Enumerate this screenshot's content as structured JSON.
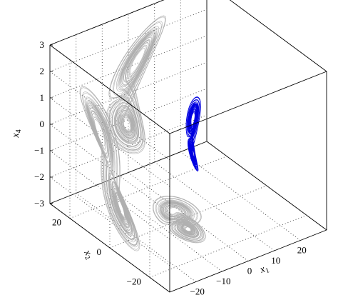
{
  "chart_data": {
    "type": "line3d",
    "title": "",
    "view": "3D phase portrait with projections on the walls",
    "axes": {
      "x1": {
        "label": "x",
        "subscript": "1",
        "range": [
          -30,
          30
        ],
        "ticks": [
          -20,
          -10,
          0,
          10,
          20
        ]
      },
      "x2": {
        "label": "x",
        "subscript": "2",
        "range": [
          -30,
          30
        ],
        "ticks": [
          -20,
          0,
          20
        ]
      },
      "x4": {
        "label": "x",
        "subscript": "4",
        "range": [
          -3,
          3
        ],
        "ticks": [
          -3,
          -2,
          -1,
          0,
          1,
          2,
          3
        ]
      }
    },
    "grid": true,
    "series": [
      {
        "role": "trajectory",
        "color": "#0000e0"
      },
      {
        "role": "projection-x2-x4",
        "color": "#b0b0b0"
      },
      {
        "role": "projection-x1-x4",
        "color": "#b0b0b0"
      },
      {
        "role": "projection-x1-x2",
        "color": "#b0b0b0"
      }
    ],
    "attractor_extent": {
      "x1": [
        -10,
        12
      ],
      "x2": [
        -15,
        15
      ],
      "x4": [
        -2.3,
        2.3
      ]
    }
  }
}
